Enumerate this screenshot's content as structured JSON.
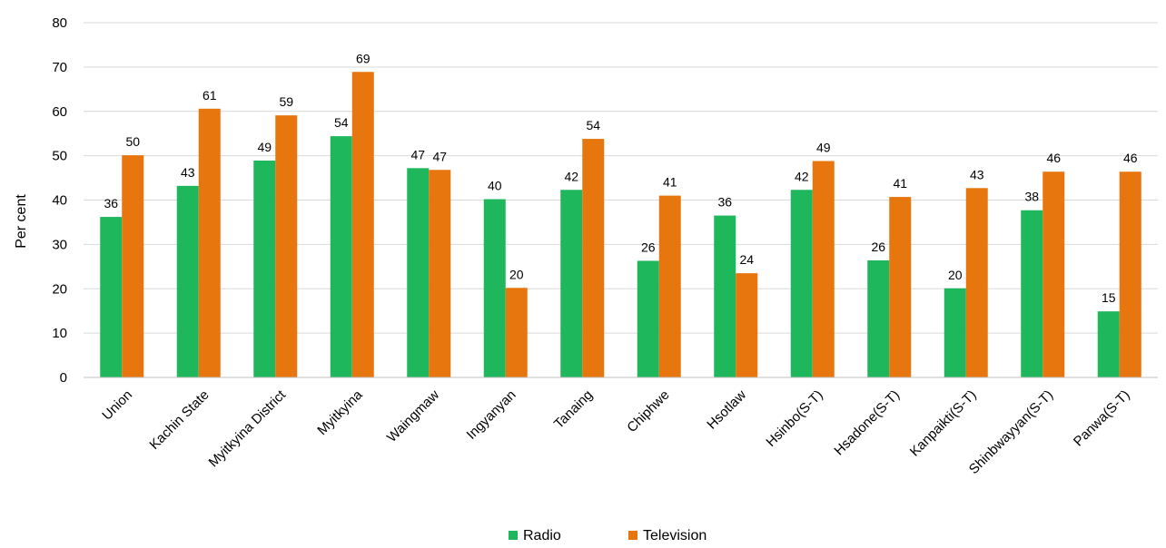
{
  "chart_data": {
    "type": "bar",
    "title": "",
    "xlabel": "",
    "ylabel": "Per cent",
    "ylim": [
      0,
      80
    ],
    "yticks": [
      0,
      10,
      20,
      30,
      40,
      50,
      60,
      70,
      80
    ],
    "grid": true,
    "legend_position": "bottom",
    "categories": [
      "Union",
      "Kachin State",
      "Myitkyina District",
      "Myitkyina",
      "Waingmaw",
      "Ingyanyan",
      "Tanaing",
      "Chiphwe",
      "Hsotlaw",
      "Hsinbo(S-T)",
      "Hsadone(S-T)",
      "Kanpaikti(S-T)",
      "Shinbwayyan(S-T)",
      "Panwa(S-T)"
    ],
    "series": [
      {
        "name": "Radio",
        "color": "#1fb75b",
        "values": [
          36.2,
          43.2,
          48.9,
          54.4,
          47.2,
          40.2,
          42.3,
          26.3,
          36.5,
          42.3,
          26.4,
          20.1,
          37.7,
          14.9
        ],
        "labels": [
          "36",
          "43",
          "49",
          "54",
          "47",
          "40",
          "42",
          "26",
          "36",
          "42",
          "26",
          "20",
          "38",
          "15"
        ]
      },
      {
        "name": "Television",
        "color": "#e8760f",
        "values": [
          50.1,
          60.6,
          59.1,
          68.9,
          46.8,
          20.2,
          53.8,
          41.0,
          23.5,
          48.8,
          40.7,
          42.7,
          46.4,
          46.4
        ],
        "labels": [
          "50",
          "61",
          "59",
          "69",
          "47",
          "20",
          "54",
          "41",
          "24",
          "49",
          "41",
          "43",
          "46",
          "46"
        ]
      }
    ]
  }
}
